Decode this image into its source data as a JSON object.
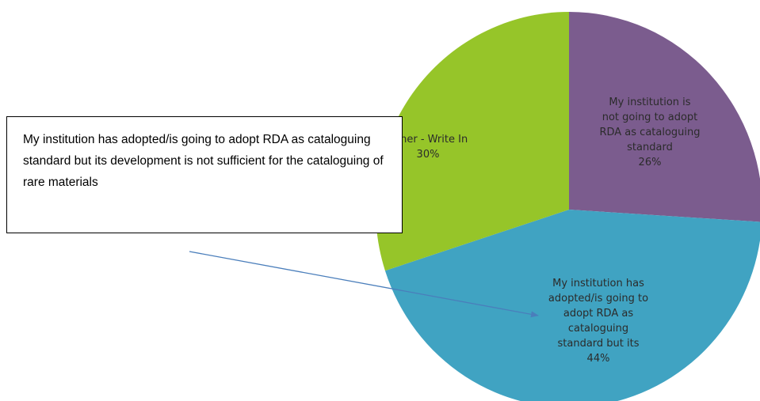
{
  "chart_data": {
    "type": "pie",
    "title": "",
    "slices": [
      {
        "label_lines": [
          "My institution is",
          "not going to adopt",
          "RDA as cataloguing",
          "standard",
          "26%"
        ],
        "value": 26,
        "color": "#7b5c8e"
      },
      {
        "label_lines": [
          "My institution has",
          "adopted/is going to",
          "adopt RDA as",
          "cataloguing",
          "standard but its",
          "44%"
        ],
        "value": 44,
        "color": "#40a3c2"
      },
      {
        "label_lines": [
          "Other - Write In",
          "30%"
        ],
        "value": 30,
        "color": "#96c529"
      }
    ]
  },
  "callout": {
    "text": "My institution has adopted/is going to adopt RDA as cataloguing standard but its development is not sufficient for the cataloguing of rare materials",
    "arrow_color": "#4a7ebb"
  }
}
